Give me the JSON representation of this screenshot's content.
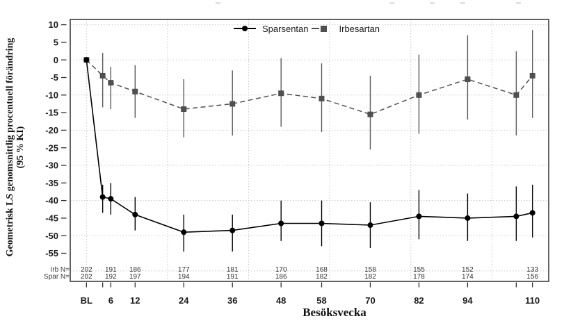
{
  "figure": {
    "x_axis_title": "Besöksvecka",
    "y_axis_title_line1": "Geometrisk LS genomsnittlig procentuell förändring",
    "y_axis_title_line2": "(95 % KI)"
  },
  "legend": {
    "items": [
      {
        "label": "Sparsentan",
        "marker": "circle",
        "line_style": "solid",
        "color": "#000000"
      },
      {
        "label": "Irbesartan",
        "marker": "square",
        "line_style": "dashed",
        "color": "#4f4f4f"
      }
    ]
  },
  "chart_data": {
    "type": "line",
    "title": "",
    "xlabel": "Besöksvecka",
    "ylabel": "Geometrisk LS genomsnittlig procentuell förändring (95 % KI)",
    "x_unit": "week",
    "x_weeks": [
      0,
      4,
      6,
      12,
      24,
      36,
      48,
      58,
      70,
      82,
      94,
      106,
      110
    ],
    "x_tick_labels": [
      {
        "week": 0,
        "label": "BL"
      },
      {
        "week": 6,
        "label": "6"
      },
      {
        "week": 12,
        "label": "12"
      },
      {
        "week": 24,
        "label": "24"
      },
      {
        "week": 36,
        "label": "36"
      },
      {
        "week": 48,
        "label": "48"
      },
      {
        "week": 58,
        "label": "58"
      },
      {
        "week": 70,
        "label": "70"
      },
      {
        "week": 82,
        "label": "82"
      },
      {
        "week": 94,
        "label": "94"
      },
      {
        "week": 110,
        "label": "110"
      }
    ],
    "ylim": [
      -63,
      11.5
    ],
    "yticks": [
      10,
      5,
      0,
      -5,
      -10,
      -15,
      -20,
      -25,
      -30,
      -35,
      -40,
      -45,
      -50,
      -55
    ],
    "grid_y": [
      10,
      0,
      -10,
      -20,
      -30,
      -40,
      -50,
      -60
    ],
    "grid_x_weeks": [
      0,
      20,
      40,
      60,
      80,
      100
    ],
    "grid_style": "dotted",
    "legend_position": "top-center-inside",
    "error_bars": "95% CI, no caps",
    "series": [
      {
        "name": "Irbesartan",
        "color": "#4f4f4f",
        "line_style": "dashed",
        "marker": "square",
        "points": [
          {
            "week": 0,
            "value": 0
          },
          {
            "week": 4,
            "value": -4.5,
            "ci_high": 2,
            "ci_low": -13.5
          },
          {
            "week": 6,
            "value": -6.5,
            "ci_high": -2,
            "ci_low": -14
          },
          {
            "week": 12,
            "value": -9,
            "ci_high": -1.5,
            "ci_low": -16.5
          },
          {
            "week": 24,
            "value": -14,
            "ci_high": -5.5,
            "ci_low": -22
          },
          {
            "week": 36,
            "value": -12.5,
            "ci_high": -3,
            "ci_low": -21.5
          },
          {
            "week": 48,
            "value": -9.5,
            "ci_high": 0.5,
            "ci_low": -19
          },
          {
            "week": 58,
            "value": -11,
            "ci_high": -1,
            "ci_low": -20.5
          },
          {
            "week": 70,
            "value": -15.5,
            "ci_high": -4.5,
            "ci_low": -25.5
          },
          {
            "week": 82,
            "value": -10,
            "ci_high": 1.5,
            "ci_low": -21
          },
          {
            "week": 94,
            "value": -5.5,
            "ci_high": 7,
            "ci_low": -17
          },
          {
            "week": 106,
            "value": -10,
            "ci_high": 2.5,
            "ci_low": -21.5
          },
          {
            "week": 110,
            "value": -4.5,
            "ci_high": 8.5,
            "ci_low": -16.5
          }
        ]
      },
      {
        "name": "Sparsentan",
        "color": "#000000",
        "line_style": "solid",
        "marker": "circle",
        "points": [
          {
            "week": 0,
            "value": 0
          },
          {
            "week": 4,
            "value": -39,
            "ci_high": -35.5,
            "ci_low": -43.5
          },
          {
            "week": 6,
            "value": -39.5,
            "ci_high": -35,
            "ci_low": -44
          },
          {
            "week": 12,
            "value": -44,
            "ci_high": -39,
            "ci_low": -48.5
          },
          {
            "week": 24,
            "value": -49,
            "ci_high": -44,
            "ci_low": -54.5
          },
          {
            "week": 36,
            "value": -48.5,
            "ci_high": -44,
            "ci_low": -54.5
          },
          {
            "week": 48,
            "value": -46.5,
            "ci_high": -40,
            "ci_low": -51.5
          },
          {
            "week": 58,
            "value": -46.5,
            "ci_high": -40,
            "ci_low": -53
          },
          {
            "week": 70,
            "value": -47,
            "ci_high": -40.5,
            "ci_low": -53.5
          },
          {
            "week": 82,
            "value": -44.5,
            "ci_high": -37,
            "ci_low": -51
          },
          {
            "week": 94,
            "value": -45,
            "ci_high": -38,
            "ci_low": -51.5
          },
          {
            "week": 106,
            "value": -44.5,
            "ci_high": -36,
            "ci_low": -51.5
          },
          {
            "week": 110,
            "value": -43.5,
            "ci_high": -35.5,
            "ci_low": -50.5
          }
        ]
      }
    ],
    "n_rows": [
      {
        "label": "Irb N=",
        "weeks": [
          0,
          6,
          12,
          24,
          36,
          48,
          58,
          70,
          82,
          94,
          110
        ],
        "values": [
          202,
          191,
          186,
          177,
          181,
          170,
          168,
          158,
          155,
          152,
          133
        ]
      },
      {
        "label": "Spar N=",
        "weeks": [
          0,
          6,
          12,
          24,
          36,
          48,
          58,
          70,
          82,
          94,
          110
        ],
        "values": [
          202,
          192,
          197,
          194,
          191,
          186,
          182,
          182,
          178,
          174,
          156
        ]
      }
    ]
  }
}
